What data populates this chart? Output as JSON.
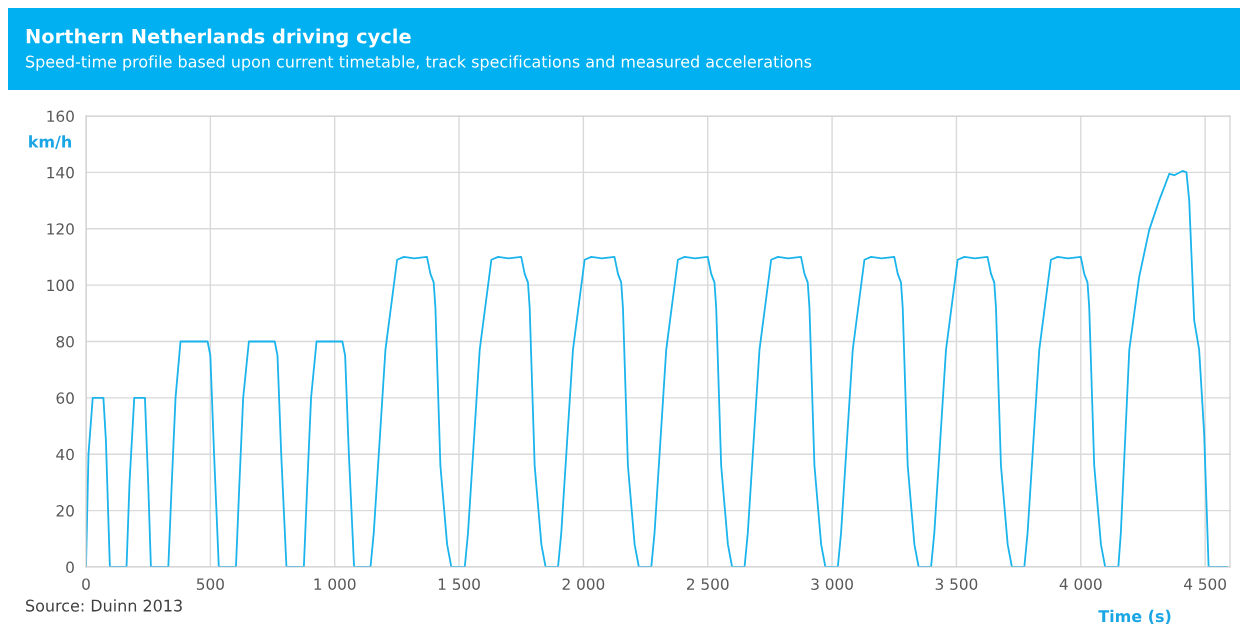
{
  "chart_data": {
    "type": "line",
    "title": "Northern Netherlands driving cycle",
    "subtitle": "Speed-time profile based upon current timetable, track specifications and measured accelerations",
    "xlabel": "Time (s)",
    "ylabel": "km/h",
    "annotations": [
      "Source: Duinn 2013"
    ],
    "series": [
      {
        "color": "#1cb4ec",
        "x": [
          0,
          10,
          27,
          70,
          80,
          96,
          163,
          175,
          194,
          237,
          250,
          261,
          331,
          345,
          360,
          380,
          489,
          500,
          515,
          534,
          603,
          617,
          632,
          655,
          759,
          770,
          785,
          806,
          876,
          890,
          905,
          927,
          1031,
          1042,
          1057,
          1078,
          1144,
          1157,
          1204,
          1251,
          1278,
          1320,
          1371,
          1385,
          1398,
          1405,
          1425,
          1452,
          1469,
          1523,
          1536,
          1583,
          1630,
          1657,
          1699,
          1750,
          1764,
          1777,
          1784,
          1804,
          1831,
          1848,
          1898,
          1911,
          1958,
          2005,
          2032,
          2074,
          2125,
          2139,
          2152,
          2159,
          2179,
          2206,
          2223,
          2273,
          2286,
          2333,
          2380,
          2407,
          2449,
          2500,
          2514,
          2527,
          2534,
          2554,
          2581,
          2598,
          2648,
          2661,
          2708,
          2755,
          2782,
          2824,
          2875,
          2889,
          2902,
          2909,
          2929,
          2956,
          2973,
          3023,
          3036,
          3083,
          3130,
          3157,
          3199,
          3250,
          3264,
          3277,
          3284,
          3304,
          3331,
          3348,
          3398,
          3411,
          3458,
          3505,
          3532,
          3574,
          3625,
          3639,
          3652,
          3659,
          3679,
          3706,
          3723,
          3773,
          3786,
          3833,
          3880,
          3907,
          3949,
          4000,
          4014,
          4027,
          4034,
          4054,
          4081,
          4098,
          4151,
          4161,
          4195,
          4235,
          4275,
          4315,
          4356,
          4376,
          4409,
          4425,
          4436,
          4456,
          4476,
          4496,
          4514,
          4589
        ],
        "values": [
          0,
          40,
          60,
          60,
          45,
          0,
          0,
          30,
          60,
          60,
          30,
          0,
          0,
          30,
          60,
          80,
          80,
          75,
          40,
          0,
          0,
          30,
          60,
          80,
          80,
          75,
          40,
          0,
          0,
          30,
          60,
          80,
          80,
          75,
          40,
          0,
          0,
          12,
          77,
          109,
          110,
          109.5,
          110,
          104,
          101,
          92,
          36,
          8,
          0,
          0,
          12,
          77,
          109,
          110,
          109.5,
          110,
          104,
          101,
          92,
          36,
          8,
          0,
          0,
          12,
          77,
          109,
          110,
          109.5,
          110,
          104,
          101,
          92,
          36,
          8,
          0,
          0,
          12,
          77,
          109,
          110,
          109.5,
          110,
          104,
          101,
          92,
          36,
          8,
          0,
          0,
          12,
          77,
          109,
          110,
          109.5,
          110,
          104,
          101,
          92,
          36,
          8,
          0,
          0,
          12,
          77,
          109,
          110,
          109.5,
          110,
          104,
          101,
          92,
          36,
          8,
          0,
          0,
          12,
          77,
          109,
          110,
          109.5,
          110,
          104,
          101,
          92,
          36,
          8,
          0,
          0,
          12,
          77,
          109,
          110,
          109.5,
          110,
          104,
          101,
          92,
          36,
          8,
          0,
          0,
          12,
          77,
          103,
          119.5,
          130,
          139.5,
          139,
          140.5,
          140,
          130,
          87.5,
          77,
          47.5,
          0,
          0
        ]
      }
    ],
    "xlim": [
      0,
      4600
    ],
    "xticks": [
      0,
      500,
      {
        "value": 1000,
        "label": "1 000"
      },
      {
        "value": 1500,
        "label": "1 500"
      },
      {
        "value": 2000,
        "label": "2 000"
      },
      {
        "value": 2500,
        "label": "2 500"
      },
      {
        "value": 3000,
        "label": "3 000"
      },
      {
        "value": 3500,
        "label": "3 500"
      },
      {
        "value": 4000,
        "label": "4 000"
      },
      {
        "value": 4500,
        "label": "4 500"
      }
    ],
    "ylim": [
      0,
      160
    ],
    "yticks": [
      0,
      20,
      40,
      60,
      80,
      100,
      120,
      140,
      160
    ],
    "grid": true,
    "marker": "none",
    "line_style": "solid"
  }
}
